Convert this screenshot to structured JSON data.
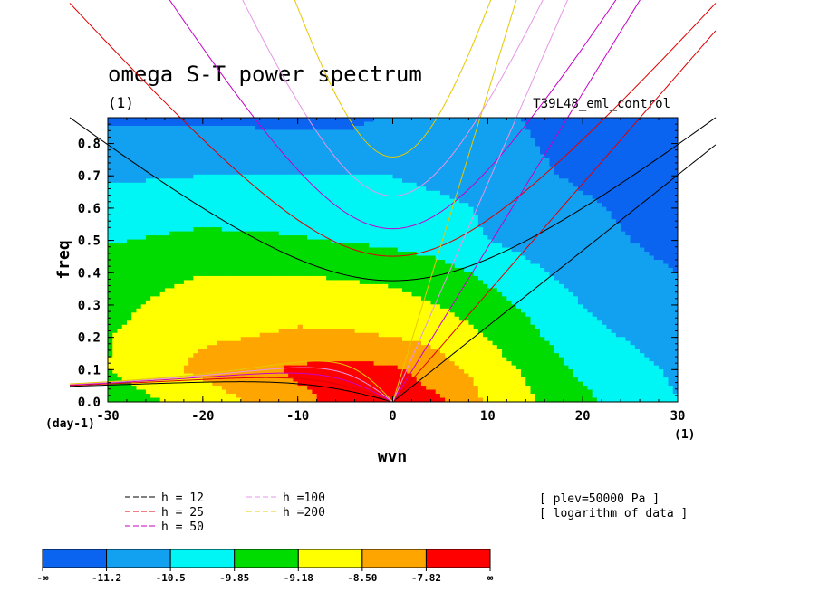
{
  "chart_data": {
    "type": "heatmap",
    "title": "omega S-T power spectrum",
    "subtitle": "(1)",
    "run_label": "T39L48_eml_control",
    "xlabel": "wvn",
    "ylabel": "freq",
    "x_unit": "(1)",
    "y_unit": "(day-1)",
    "xlim": [
      -30,
      30
    ],
    "ylim": [
      0,
      0.88
    ],
    "xticks": [
      "-30",
      "-20",
      "-10",
      "0",
      "10",
      "20",
      "30"
    ],
    "yticks": [
      "0.0",
      "0.1",
      "0.2",
      "0.3",
      "0.4",
      "0.5",
      "0.6",
      "0.7",
      "0.8"
    ],
    "grid": false,
    "levels": {
      "labels": [
        "-∞",
        "-11.2",
        "-10.5",
        "-9.85",
        "-9.18",
        "-8.50",
        "-7.82",
        "∞"
      ],
      "colors": [
        "#0a64f0",
        "#12a0f0",
        "#00f5f5",
        "#00dc00",
        "#ffff00",
        "#ffa500",
        "#ff0000"
      ]
    },
    "field": {
      "x": [
        -30,
        -20,
        -10,
        -5,
        0,
        5,
        10,
        20,
        30
      ],
      "y": [
        0,
        0.1,
        0.2,
        0.3,
        0.4,
        0.5,
        0.6,
        0.7,
        0.8,
        0.88
      ],
      "z": [
        [
          -9.6,
          -8.9,
          -8.0,
          -7.6,
          -7.4,
          -7.7,
          -8.6,
          -9.7,
          -10.5
        ],
        [
          -9.2,
          -8.3,
          -7.7,
          -7.6,
          -7.7,
          -8.2,
          -8.8,
          -10.0,
          -10.6
        ],
        [
          -9.2,
          -8.6,
          -8.4,
          -8.4,
          -8.5,
          -8.7,
          -9.2,
          -10.3,
          -10.8
        ],
        [
          -9.4,
          -8.8,
          -8.7,
          -8.8,
          -8.9,
          -9.2,
          -9.6,
          -10.5,
          -11.0
        ],
        [
          -9.6,
          -9.2,
          -9.2,
          -9.3,
          -9.4,
          -9.6,
          -10.0,
          -10.8,
          -11.2
        ],
        [
          -9.9,
          -9.7,
          -9.8,
          -9.9,
          -10.0,
          -10.2,
          -10.5,
          -11.0,
          -11.4
        ],
        [
          -10.2,
          -10.1,
          -10.1,
          -10.2,
          -10.2,
          -10.3,
          -10.6,
          -11.1,
          -11.5
        ],
        [
          -10.6,
          -10.5,
          -10.5,
          -10.5,
          -10.5,
          -10.7,
          -10.9,
          -11.3,
          -11.6
        ],
        [
          -10.9,
          -10.9,
          -11.0,
          -11.0,
          -10.9,
          -10.9,
          -11.0,
          -11.4,
          -11.7
        ],
        [
          -11.3,
          -11.3,
          -11.4,
          -11.4,
          -11.1,
          -11.0,
          -11.1,
          -11.4,
          -11.8
        ]
      ]
    },
    "dispersion_curves": [
      {
        "name": "h = 12",
        "h": 12,
        "color": "#000000"
      },
      {
        "name": "h = 25",
        "h": 25,
        "color": "#e00000"
      },
      {
        "name": "h = 50",
        "h": 50,
        "color": "#c800c8"
      },
      {
        "name": "h =100",
        "h": 100,
        "color": "#e696e6"
      },
      {
        "name": "h =200",
        "h": 200,
        "color": "#e6c800"
      }
    ],
    "annotations": [
      "[ plev=50000 Pa ]",
      "[ logarithm of data ]"
    ]
  }
}
